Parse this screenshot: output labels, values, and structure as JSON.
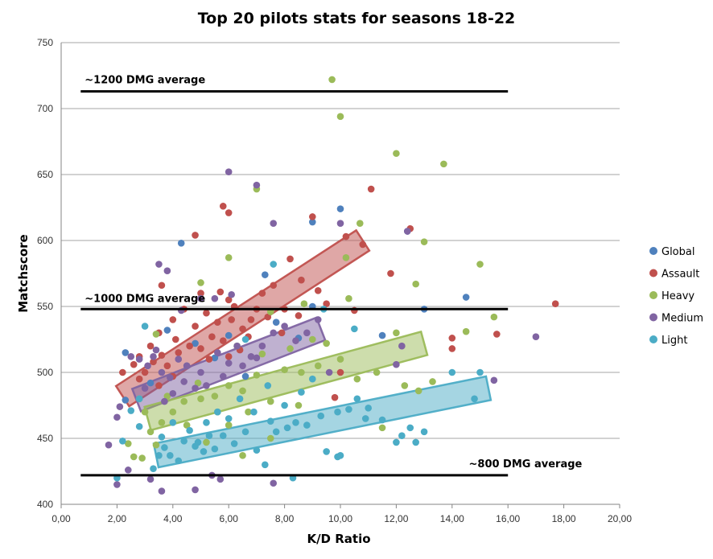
{
  "chart_data": {
    "type": "scatter",
    "title": "Top 20 pilots stats for seasons 18-22",
    "xlabel": "K/D Ratio",
    "ylabel": "Matchscore",
    "xlim": [
      0,
      20
    ],
    "ylim": [
      400,
      750
    ],
    "x_ticks": [
      "0,00",
      "2,00",
      "4,00",
      "6,00",
      "8,00",
      "10,00",
      "12,00",
      "14,00",
      "16,00",
      "18,00",
      "20,00"
    ],
    "y_ticks": [
      "400",
      "450",
      "500",
      "550",
      "600",
      "650",
      "700",
      "750"
    ],
    "grid": "horizontal",
    "legend_position": "right",
    "series": [
      {
        "name": "Global",
        "color": "#4f81bd",
        "points": [
          [
            2.3,
            515
          ],
          [
            4.3,
            598
          ],
          [
            7.3,
            574
          ],
          [
            9.0,
            614
          ],
          [
            10.0,
            624
          ],
          [
            9.0,
            550
          ],
          [
            12.4,
            607
          ],
          [
            14.5,
            557
          ],
          [
            13.0,
            548
          ],
          [
            6.0,
            528
          ],
          [
            8.5,
            526
          ],
          [
            5.5,
            511
          ],
          [
            4.5,
            505
          ],
          [
            3.2,
            492
          ],
          [
            2.3,
            479
          ],
          [
            7.7,
            538
          ],
          [
            11.5,
            528
          ],
          [
            6.6,
            497
          ],
          [
            3.8,
            532
          ],
          [
            4.8,
            522
          ]
        ]
      },
      {
        "name": "Assault",
        "color": "#c0504d",
        "points": [
          [
            5.8,
            626
          ],
          [
            6.0,
            621
          ],
          [
            10.2,
            603
          ],
          [
            10.8,
            597
          ],
          [
            11.1,
            639
          ],
          [
            12.5,
            609
          ],
          [
            9.0,
            618
          ],
          [
            8.2,
            586
          ],
          [
            4.8,
            604
          ],
          [
            3.6,
            566
          ],
          [
            5.0,
            560
          ],
          [
            6.0,
            555
          ],
          [
            7.0,
            548
          ],
          [
            8.5,
            543
          ],
          [
            9.5,
            552
          ],
          [
            10.5,
            547
          ],
          [
            11.8,
            575
          ],
          [
            14.0,
            526
          ],
          [
            14.0,
            518
          ],
          [
            15.6,
            529
          ],
          [
            17.7,
            552
          ],
          [
            10.0,
            500
          ],
          [
            9.8,
            481
          ],
          [
            2.2,
            500
          ],
          [
            2.8,
            512
          ],
          [
            3.2,
            520
          ],
          [
            3.5,
            530
          ],
          [
            4.0,
            540
          ],
          [
            4.4,
            548
          ],
          [
            4.8,
            535
          ],
          [
            5.2,
            545
          ],
          [
            5.6,
            538
          ],
          [
            6.2,
            550
          ],
          [
            6.5,
            533
          ],
          [
            7.2,
            560
          ],
          [
            7.6,
            566
          ],
          [
            8.0,
            548
          ],
          [
            8.6,
            570
          ],
          [
            9.2,
            562
          ],
          [
            3.0,
            500
          ],
          [
            3.3,
            508
          ],
          [
            3.8,
            505
          ],
          [
            4.2,
            515
          ],
          [
            4.6,
            520
          ],
          [
            5.0,
            518
          ],
          [
            5.4,
            527
          ],
          [
            5.8,
            524
          ],
          [
            6.4,
            517
          ],
          [
            6.8,
            540
          ],
          [
            7.4,
            542
          ],
          [
            7.9,
            530
          ],
          [
            2.6,
            506
          ],
          [
            3.6,
            513
          ],
          [
            4.0,
            497
          ],
          [
            5.3,
            510
          ],
          [
            6.0,
            512
          ],
          [
            6.7,
            527
          ],
          [
            2.8,
            495
          ],
          [
            3.5,
            490
          ],
          [
            4.1,
            525
          ],
          [
            5.7,
            561
          ],
          [
            6.1,
            540
          ]
        ]
      },
      {
        "name": "Heavy",
        "color": "#9bbb59",
        "points": [
          [
            9.7,
            722
          ],
          [
            10.0,
            694
          ],
          [
            12.0,
            666
          ],
          [
            13.7,
            658
          ],
          [
            13.0,
            599
          ],
          [
            10.2,
            587
          ],
          [
            6.0,
            587
          ],
          [
            7.0,
            639
          ],
          [
            12.7,
            567
          ],
          [
            15.0,
            582
          ],
          [
            15.5,
            542
          ],
          [
            14.5,
            531
          ],
          [
            12.0,
            530
          ],
          [
            13.3,
            493
          ],
          [
            12.8,
            486
          ],
          [
            10.3,
            556
          ],
          [
            8.7,
            552
          ],
          [
            5.0,
            568
          ],
          [
            7.5,
            546
          ],
          [
            6.3,
            520
          ],
          [
            3.4,
            529
          ],
          [
            2.4,
            446
          ],
          [
            2.6,
            436
          ],
          [
            2.9,
            435
          ],
          [
            3.4,
            445
          ],
          [
            4.0,
            470
          ],
          [
            4.4,
            478
          ],
          [
            5.0,
            480
          ],
          [
            5.5,
            482
          ],
          [
            6.0,
            490
          ],
          [
            6.5,
            486
          ],
          [
            7.0,
            498
          ],
          [
            7.5,
            478
          ],
          [
            8.0,
            502
          ],
          [
            8.6,
            500
          ],
          [
            9.2,
            505
          ],
          [
            10.0,
            510
          ],
          [
            10.6,
            495
          ],
          [
            11.3,
            500
          ],
          [
            11.5,
            458
          ],
          [
            6.5,
            437
          ],
          [
            4.5,
            460
          ],
          [
            3.0,
            470
          ],
          [
            3.8,
            482
          ],
          [
            4.9,
            492
          ],
          [
            5.6,
            470
          ],
          [
            6.7,
            470
          ],
          [
            7.2,
            514
          ],
          [
            8.2,
            518
          ],
          [
            9.0,
            525
          ],
          [
            2.8,
            480
          ],
          [
            3.2,
            455
          ],
          [
            5.2,
            447
          ],
          [
            6.0,
            460
          ],
          [
            7.5,
            450
          ],
          [
            8.5,
            475
          ],
          [
            9.5,
            522
          ],
          [
            10.7,
            613
          ],
          [
            12.3,
            490
          ],
          [
            3.6,
            462
          ]
        ]
      },
      {
        "name": "Medium",
        "color": "#8064a2",
        "points": [
          [
            6.0,
            652
          ],
          [
            7.0,
            642
          ],
          [
            7.6,
            613
          ],
          [
            10.0,
            613
          ],
          [
            12.4,
            607
          ],
          [
            3.5,
            582
          ],
          [
            3.8,
            577
          ],
          [
            2.5,
            512
          ],
          [
            2.1,
            474
          ],
          [
            2.0,
            466
          ],
          [
            1.7,
            445
          ],
          [
            2.4,
            426
          ],
          [
            2.0,
            415
          ],
          [
            3.2,
            419
          ],
          [
            3.6,
            410
          ],
          [
            4.8,
            411
          ],
          [
            5.4,
            422
          ],
          [
            5.7,
            419
          ],
          [
            7.6,
            416
          ],
          [
            4.3,
            547
          ],
          [
            5.0,
            556
          ],
          [
            5.5,
            556
          ],
          [
            6.1,
            559
          ],
          [
            2.8,
            510
          ],
          [
            3.1,
            505
          ],
          [
            3.4,
            517
          ],
          [
            3.6,
            500
          ],
          [
            3.9,
            496
          ],
          [
            4.2,
            510
          ],
          [
            4.5,
            505
          ],
          [
            4.8,
            488
          ],
          [
            5.2,
            490
          ],
          [
            5.6,
            515
          ],
          [
            6.0,
            507
          ],
          [
            6.3,
            520
          ],
          [
            6.8,
            512
          ],
          [
            7.2,
            520
          ],
          [
            7.6,
            530
          ],
          [
            8.0,
            535
          ],
          [
            8.4,
            524
          ],
          [
            8.8,
            530
          ],
          [
            9.2,
            540
          ],
          [
            9.6,
            500
          ],
          [
            12.0,
            506
          ],
          [
            12.2,
            520
          ],
          [
            17.0,
            527
          ],
          [
            15.5,
            494
          ],
          [
            3.0,
            488
          ],
          [
            3.7,
            478
          ],
          [
            4.0,
            484
          ],
          [
            5.0,
            500
          ],
          [
            5.8,
            497
          ],
          [
            6.5,
            505
          ],
          [
            7.0,
            511
          ],
          [
            3.3,
            512
          ],
          [
            4.4,
            493
          ]
        ]
      },
      {
        "name": "Light",
        "color": "#4bacc6",
        "points": [
          [
            2.0,
            420
          ],
          [
            2.2,
            448
          ],
          [
            2.5,
            471
          ],
          [
            2.8,
            459
          ],
          [
            3.3,
            427
          ],
          [
            3.5,
            437
          ],
          [
            3.9,
            437
          ],
          [
            4.4,
            448
          ],
          [
            4.8,
            444
          ],
          [
            5.1,
            440
          ],
          [
            5.5,
            442
          ],
          [
            5.8,
            452
          ],
          [
            6.2,
            446
          ],
          [
            6.6,
            455
          ],
          [
            7.0,
            441
          ],
          [
            7.3,
            430
          ],
          [
            7.7,
            455
          ],
          [
            8.1,
            458
          ],
          [
            8.4,
            462
          ],
          [
            8.8,
            460
          ],
          [
            9.3,
            467
          ],
          [
            9.9,
            470
          ],
          [
            10.3,
            472
          ],
          [
            10.6,
            480
          ],
          [
            11.0,
            473
          ],
          [
            11.5,
            464
          ],
          [
            12.0,
            447
          ],
          [
            12.2,
            452
          ],
          [
            12.5,
            458
          ],
          [
            12.7,
            447
          ],
          [
            13.0,
            455
          ],
          [
            14.8,
            480
          ],
          [
            15.0,
            500
          ],
          [
            14.0,
            500
          ],
          [
            9.9,
            436
          ],
          [
            10.0,
            437
          ],
          [
            8.3,
            420
          ],
          [
            2.8,
            480
          ],
          [
            3.0,
            535
          ],
          [
            6.6,
            525
          ],
          [
            7.6,
            582
          ],
          [
            9.4,
            548
          ],
          [
            10.5,
            533
          ],
          [
            3.6,
            451
          ],
          [
            4.0,
            462
          ],
          [
            4.6,
            456
          ],
          [
            5.2,
            462
          ],
          [
            5.6,
            470
          ],
          [
            6.4,
            480
          ],
          [
            6.9,
            470
          ],
          [
            7.4,
            490
          ],
          [
            8.0,
            475
          ],
          [
            8.6,
            485
          ],
          [
            9.0,
            495
          ],
          [
            3.7,
            443
          ],
          [
            4.2,
            433
          ],
          [
            4.9,
            447
          ],
          [
            5.3,
            452
          ],
          [
            6.0,
            465
          ],
          [
            7.5,
            463
          ],
          [
            9.5,
            440
          ],
          [
            10.9,
            465
          ]
        ]
      }
    ],
    "annotations": [
      "~1200 DMG average",
      "~1000 DMG average",
      "~800 DMG average"
    ],
    "trend_bands": [
      {
        "name": "assault-band",
        "series": "Assault",
        "color": "#c0504d",
        "y_at_x_start": [
          2.2,
          482
        ],
        "y_at_x_end": [
          10.8,
          600
        ]
      },
      {
        "name": "medium-band",
        "series": "Medium",
        "color": "#8064a2",
        "y_at_x_start": [
          2.7,
          479
        ],
        "y_at_x_end": [
          9.3,
          533
        ]
      },
      {
        "name": "heavy-band",
        "series": "Heavy",
        "color": "#9bbb59",
        "y_at_x_start": [
          3.1,
          465
        ],
        "y_at_x_end": [
          13.0,
          522
        ]
      },
      {
        "name": "light-band",
        "series": "Light",
        "color": "#4bacc6",
        "y_at_x_start": [
          3.4,
          437
        ],
        "y_at_x_end": [
          15.3,
          488
        ]
      }
    ],
    "reference_lines": [
      {
        "label": "~1200 DMG average",
        "y": 713,
        "x_range": [
          0.7,
          16.0
        ]
      },
      {
        "label": "~1000 DMG average",
        "y": 548,
        "x_range": [
          0.7,
          16.0
        ]
      },
      {
        "label": "~800 DMG average",
        "y": 422,
        "x_range": [
          0.7,
          16.0
        ]
      }
    ]
  }
}
